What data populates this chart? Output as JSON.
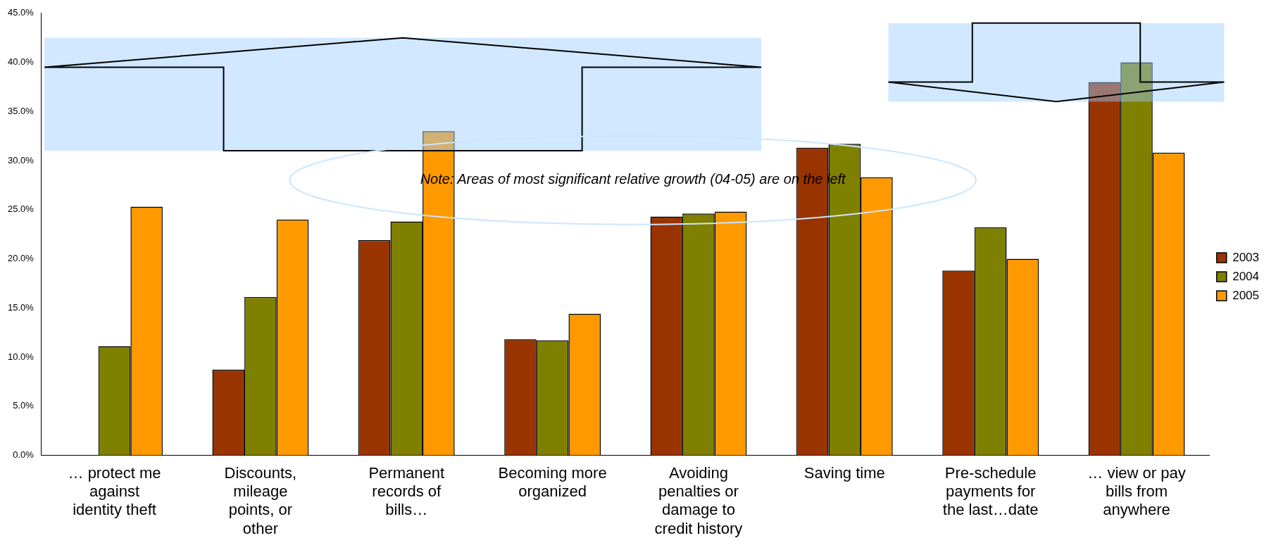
{
  "chart_data": {
    "type": "bar",
    "categories": [
      "… protect me against identity theft",
      "Discounts, mileage points, or other",
      "Permanent records of bills…",
      "Becoming more organized",
      "Avoiding penalties or damage to credit history",
      "Saving time",
      "Pre-schedule payments for the last…date",
      "… view or pay bills from anywhere"
    ],
    "series": [
      {
        "name": "2003",
        "color": "#993300",
        "values": [
          null,
          8.7,
          21.9,
          11.8,
          24.3,
          31.3,
          18.8,
          38
        ]
      },
      {
        "name": "2004",
        "color": "#808000",
        "values": [
          11.1,
          16.1,
          23.8,
          11.7,
          24.6,
          31.7,
          23.2,
          40
        ]
      },
      {
        "name": "2005",
        "color": "#ff9900",
        "values": [
          25.3,
          24.0,
          33,
          14.4,
          24.8,
          28.3,
          20.0,
          30.8
        ]
      }
    ],
    "ylim": [
      0,
      45
    ],
    "yticks": [
      {
        "value": 0,
        "label": "0.0%"
      },
      {
        "value": 5,
        "label": "5.0%"
      },
      {
        "value": 10,
        "label": "10.0%"
      },
      {
        "value": 15,
        "label": "15.0%"
      },
      {
        "value": 20,
        "label": "20.0%"
      },
      {
        "value": 25,
        "label": "25.0%"
      },
      {
        "value": 30,
        "label": "30.0%"
      },
      {
        "value": 35,
        "label": "35.0%"
      },
      {
        "value": 40,
        "label": "40.0%"
      },
      {
        "value": 45,
        "label": "45.0%"
      }
    ],
    "grid": false,
    "legend": "right",
    "annotations": [
      "Note: Areas of most significant relative growth (04-05) are on the left"
    ]
  }
}
